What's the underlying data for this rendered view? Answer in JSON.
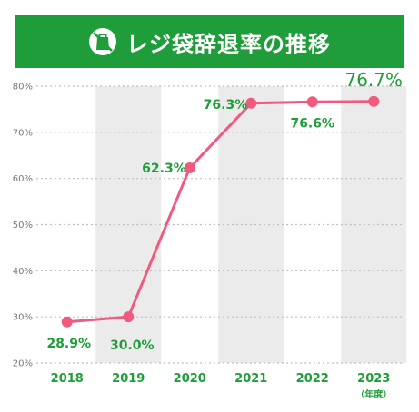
{
  "header": {
    "title": "レジ袋辞退率の推移",
    "icon": "shopping-bag-icon"
  },
  "colors": {
    "banner": "#1f9d3a",
    "line": "#f05a7e",
    "label": "#1f9d3a",
    "axis_text": "#777777",
    "band": "#ebebeb",
    "grid": "#bfbfbf"
  },
  "chart_data": {
    "type": "line",
    "title": "レジ袋辞退率の推移",
    "x": [
      "2018",
      "2019",
      "2020",
      "2021",
      "2022",
      "2023"
    ],
    "x_unit": "（年度）",
    "series": [
      {
        "values": [
          28.9,
          30.0,
          62.3,
          76.3,
          76.6,
          76.7
        ]
      }
    ],
    "data_labels": [
      "28.9%",
      "30.0%",
      "62.3%",
      "76.3%",
      "76.6%",
      "76.7%"
    ],
    "y_ticks": [
      "20%",
      "30%",
      "40%",
      "50%",
      "60%",
      "70%",
      "80%"
    ],
    "ylim": [
      20,
      80
    ],
    "grid": true,
    "legend": false
  }
}
